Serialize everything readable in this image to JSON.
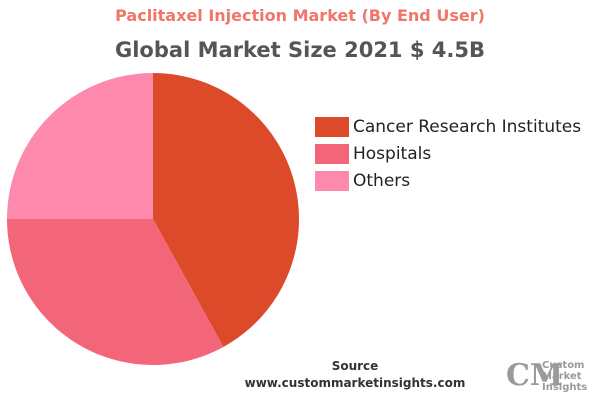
{
  "title": "Paclitaxel Injection Market (By End User)",
  "subtitle": "Global Market Size 2021 $ 4.5B",
  "chart_data": {
    "type": "pie",
    "series": [
      {
        "name": "Cancer Research Institutes",
        "value": 42,
        "color": "#dd4a29"
      },
      {
        "name": "Hospitals",
        "value": 33,
        "color": "#f3667a"
      },
      {
        "name": "Others",
        "value": 25,
        "color": "#fd8aac"
      }
    ],
    "legend_position": "right"
  },
  "source": {
    "label": "Source",
    "url": "www.custommarketinsights.com"
  },
  "logo": {
    "mark": "CM",
    "lines": [
      "Custom",
      "Market",
      "Insights"
    ]
  }
}
